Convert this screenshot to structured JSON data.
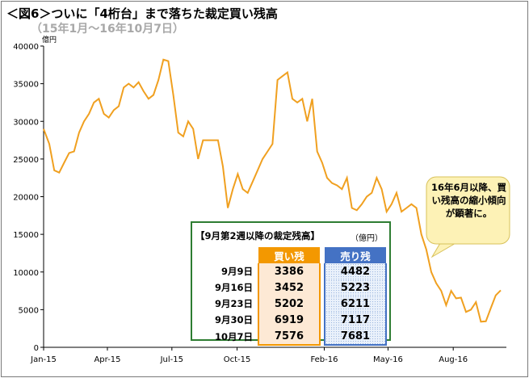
{
  "title": "＜図6＞ついに「4桁台」まで落ちた裁定買い残高",
  "subtitle": "（15年1月〜16年10月7日）",
  "callout": "16年6月以降、買い残高の縮小傾向が顕著に。",
  "colors": {
    "line": "#f0a020",
    "buy": "#f39800",
    "sell": "#4472c4",
    "box_border": "#2e7d32"
  },
  "chart_data": {
    "type": "line",
    "title": "＜図6＞ついに「4桁台」まで落ちた裁定買い残高",
    "subtitle": "（15年1月〜16年10月7日）",
    "yunit": "億円",
    "ylim": [
      0,
      40000
    ],
    "yticks": [
      0,
      5000,
      10000,
      15000,
      20000,
      25000,
      30000,
      35000,
      40000
    ],
    "xlim": [
      "2015-01-01",
      "2016-10-15"
    ],
    "xticks": [
      {
        "label": "Jan-15",
        "date": "2015-01-01"
      },
      {
        "label": "Apr-15",
        "date": "2015-04-01"
      },
      {
        "label": "Jul-15",
        "date": "2015-07-01"
      },
      {
        "label": "Oct-15",
        "date": "2015-10-01"
      },
      {
        "label": "Feb-16",
        "date": "2016-02-01"
      },
      {
        "label": "May-16",
        "date": "2016-05-01"
      },
      {
        "label": "Aug-16",
        "date": "2016-08-01"
      }
    ],
    "grid": false,
    "series": [
      {
        "points": [
          [
            "2015-01-01",
            29000
          ],
          [
            "2015-01-09",
            27000
          ],
          [
            "2015-01-16",
            23500
          ],
          [
            "2015-01-23",
            23200
          ],
          [
            "2015-01-30",
            24500
          ],
          [
            "2015-02-06",
            25800
          ],
          [
            "2015-02-13",
            26000
          ],
          [
            "2015-02-20",
            28500
          ],
          [
            "2015-02-27",
            30000
          ],
          [
            "2015-03-06",
            31000
          ],
          [
            "2015-03-13",
            32500
          ],
          [
            "2015-03-20",
            33000
          ],
          [
            "2015-03-27",
            31000
          ],
          [
            "2015-04-03",
            30500
          ],
          [
            "2015-04-10",
            31500
          ],
          [
            "2015-04-17",
            32000
          ],
          [
            "2015-04-24",
            34500
          ],
          [
            "2015-05-01",
            35000
          ],
          [
            "2015-05-08",
            34500
          ],
          [
            "2015-05-15",
            35200
          ],
          [
            "2015-05-22",
            34000
          ],
          [
            "2015-05-29",
            33000
          ],
          [
            "2015-06-05",
            33500
          ],
          [
            "2015-06-12",
            35500
          ],
          [
            "2015-06-19",
            38200
          ],
          [
            "2015-06-26",
            38000
          ],
          [
            "2015-07-03",
            33500
          ],
          [
            "2015-07-10",
            28500
          ],
          [
            "2015-07-17",
            28000
          ],
          [
            "2015-07-24",
            30000
          ],
          [
            "2015-07-31",
            29000
          ],
          [
            "2015-08-07",
            25000
          ],
          [
            "2015-08-14",
            27500
          ],
          [
            "2015-08-21",
            27500
          ],
          [
            "2015-08-28",
            27500
          ],
          [
            "2015-09-04",
            27500
          ],
          [
            "2015-09-11",
            24000
          ],
          [
            "2015-09-18",
            18500
          ],
          [
            "2015-09-25",
            21000
          ],
          [
            "2015-10-02",
            23000
          ],
          [
            "2015-10-09",
            21000
          ],
          [
            "2015-10-16",
            20500
          ],
          [
            "2015-10-23",
            22000
          ],
          [
            "2015-10-30",
            23500
          ],
          [
            "2015-11-06",
            25000
          ],
          [
            "2015-11-13",
            26000
          ],
          [
            "2015-11-20",
            27000
          ],
          [
            "2015-11-27",
            35500
          ],
          [
            "2015-12-04",
            36000
          ],
          [
            "2015-12-11",
            36500
          ],
          [
            "2015-12-18",
            33000
          ],
          [
            "2015-12-25",
            32500
          ],
          [
            "2016-01-01",
            33000
          ],
          [
            "2016-01-08",
            30000
          ],
          [
            "2016-01-15",
            33000
          ],
          [
            "2016-01-22",
            26000
          ],
          [
            "2016-01-29",
            24500
          ],
          [
            "2016-02-05",
            22500
          ],
          [
            "2016-02-12",
            21800
          ],
          [
            "2016-02-19",
            21500
          ],
          [
            "2016-02-26",
            21000
          ],
          [
            "2016-03-04",
            22500
          ],
          [
            "2016-03-11",
            18500
          ],
          [
            "2016-03-18",
            18200
          ],
          [
            "2016-03-25",
            19000
          ],
          [
            "2016-04-01",
            20000
          ],
          [
            "2016-04-08",
            20500
          ],
          [
            "2016-04-15",
            22500
          ],
          [
            "2016-04-22",
            21000
          ],
          [
            "2016-04-29",
            18000
          ],
          [
            "2016-05-06",
            19000
          ],
          [
            "2016-05-13",
            20500
          ],
          [
            "2016-05-20",
            18000
          ],
          [
            "2016-05-27",
            18500
          ],
          [
            "2016-06-03",
            19000
          ],
          [
            "2016-06-10",
            18500
          ],
          [
            "2016-06-17",
            15000
          ],
          [
            "2016-06-24",
            13000
          ],
          [
            "2016-07-01",
            10000
          ],
          [
            "2016-07-08",
            8500
          ],
          [
            "2016-07-15",
            7500
          ],
          [
            "2016-07-22",
            5600
          ],
          [
            "2016-07-29",
            7500
          ],
          [
            "2016-08-05",
            6500
          ],
          [
            "2016-08-12",
            6600
          ],
          [
            "2016-08-19",
            4700
          ],
          [
            "2016-08-26",
            5000
          ],
          [
            "2016-09-02",
            6000
          ],
          [
            "2016-09-09",
            3400
          ],
          [
            "2016-09-16",
            3450
          ],
          [
            "2016-09-23",
            5200
          ],
          [
            "2016-09-30",
            6900
          ],
          [
            "2016-10-07",
            7576
          ]
        ]
      }
    ],
    "table": {
      "title": "【9月第2週以降の裁定残高】",
      "unit": "（億円）",
      "columns": [
        "買い残",
        "売り残"
      ],
      "rows": [
        {
          "date": "9月9日",
          "buy": "3386",
          "sell": "4482"
        },
        {
          "date": "9月16日",
          "buy": "3452",
          "sell": "5223"
        },
        {
          "date": "9月23日",
          "buy": "5202",
          "sell": "6211"
        },
        {
          "date": "9月30日",
          "buy": "6919",
          "sell": "7117"
        },
        {
          "date": "10月7日",
          "buy": "7576",
          "sell": "7681"
        }
      ]
    }
  }
}
